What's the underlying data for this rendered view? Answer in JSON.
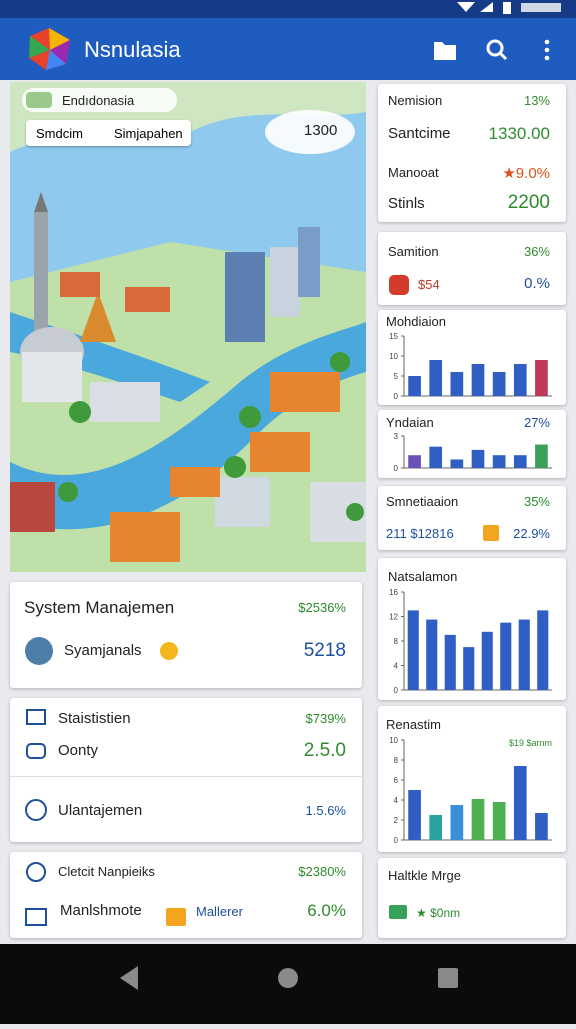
{
  "app_bar": {
    "title": "Nsnulasia"
  },
  "map": {
    "label": "Endıdonasia",
    "chips": [
      "Smdcim",
      "Simjapahen"
    ],
    "value": "1300"
  },
  "left_cards": [
    {
      "rows": [
        {
          "label": "System Manajemen",
          "value": "$2536%"
        },
        {
          "label": "Syamjanals",
          "value": "5218"
        }
      ]
    },
    {
      "rows": [
        {
          "label": "Staististien",
          "value": "$739%"
        },
        {
          "label": "Oonty",
          "value": "2.5.0"
        },
        {
          "label": "Ulantajemen",
          "value": "1.5.6%"
        }
      ]
    },
    {
      "rows": [
        {
          "label": "Cletcit Nanpieiks",
          "value": "$2380%"
        },
        {
          "label": "Manlshmote",
          "tag": "Mallerer",
          "value": "6.0%"
        }
      ]
    }
  ],
  "right_cards": [
    {
      "rows": [
        {
          "label": "Nemision",
          "value": "13%"
        },
        {
          "label": "Santcime",
          "value": "1330.00"
        },
        {
          "label": "Manooat",
          "value": "★9.0%"
        },
        {
          "label": "Stinls",
          "value": "2200"
        }
      ]
    },
    {
      "rows": [
        {
          "label": "Samition",
          "value": "36%"
        },
        {
          "label": "$54",
          "value": "0.%"
        }
      ]
    },
    {
      "title": "Mohdiaion",
      "chart": {
        "type": "bar",
        "ylim": [
          0,
          15
        ],
        "yticks": [
          0,
          5,
          10,
          15
        ],
        "values": [
          5,
          9,
          6,
          8,
          6,
          8,
          9
        ],
        "colors": [
          "#2f5fc4",
          "#2f5fc4",
          "#2f5fc4",
          "#2f5fc4",
          "#2f5fc4",
          "#2f5fc4",
          "#c0395a"
        ]
      }
    },
    {
      "title": "Yndaian",
      "value": "27%",
      "chart": {
        "type": "bar",
        "ylim": [
          0,
          3
        ],
        "yticks": [
          0,
          3
        ],
        "values": [
          1.2,
          2.0,
          0.8,
          1.7,
          1.2,
          1.2,
          2.2
        ],
        "colors": [
          "#6a4fb5",
          "#2f5fc4",
          "#2f5fc4",
          "#2f5fc4",
          "#2f5fc4",
          "#2f5fc4",
          "#3aa05a"
        ]
      }
    },
    {
      "rows": [
        {
          "label": "Smnetiaaion",
          "value": "35%"
        },
        {
          "label": "211 $12816",
          "value": "22.9%"
        }
      ]
    },
    {
      "title": "Natsalamon",
      "chart": {
        "type": "bar",
        "ylim": [
          0,
          16
        ],
        "yticks": [
          0,
          4,
          8,
          12,
          16
        ],
        "values": [
          13,
          11.5,
          9,
          7,
          9.5,
          11,
          11.5,
          13
        ],
        "colors": [
          "#2f5fc4",
          "#2f5fc4",
          "#2f5fc4",
          "#2f5fc4",
          "#2f5fc4",
          "#2f5fc4",
          "#2f5fc4",
          "#2f5fc4"
        ]
      }
    },
    {
      "title": "Renastim",
      "chart": {
        "type": "bar",
        "ylim": [
          0,
          10
        ],
        "yticks": [
          0,
          2,
          4,
          6,
          8,
          10
        ],
        "values": [
          5,
          2.5,
          3.5,
          4.1,
          3.8,
          7.4,
          2.7
        ],
        "colors": [
          "#2f5fc4",
          "#2aa2a0",
          "#3a8fd8",
          "#4caf50",
          "#4caf50",
          "#2f5fc4",
          "#2f5fc4"
        ],
        "annotation": "$19 $arnm"
      }
    },
    {
      "title": "Haltkle Mrge",
      "value": "★ $0nm"
    }
  ]
}
